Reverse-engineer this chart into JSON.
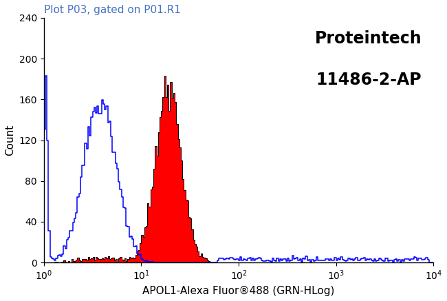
{
  "title": "Plot P03, gated on P01.R1",
  "xlabel": "APOL1-Alexa Fluor®488 (GRN-HLog)",
  "ylabel": "Count",
  "watermark_line1": "Proteintech",
  "watermark_line2": "11486-2-AP",
  "xlim_log": [
    1,
    10000
  ],
  "ylim": [
    0,
    240
  ],
  "yticks": [
    0,
    40,
    80,
    120,
    160,
    200,
    240
  ],
  "xticks_log": [
    1,
    10,
    100,
    1000,
    10000
  ],
  "blue_color": "#0000FF",
  "red_fill_color": "#FF0000",
  "black_outline_color": "#000000",
  "bg_color": "#FFFFFF",
  "title_color": "#4472C4",
  "title_fontsize": 11,
  "label_fontsize": 11,
  "watermark_fontsize": 17,
  "tick_fontsize": 10,
  "n_bins": 256
}
